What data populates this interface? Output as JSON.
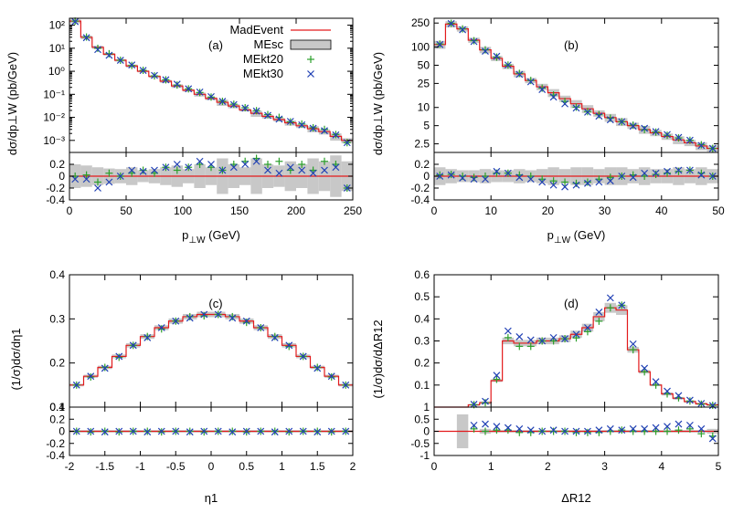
{
  "legend": {
    "entries": [
      {
        "name": "MadEvent",
        "color": "#e31a1c",
        "style": "line"
      },
      {
        "name": "MEsc",
        "color": "#c8c8c8",
        "style": "band"
      },
      {
        "name": "MEkt20",
        "color": "#2ca02c",
        "style": "plus"
      },
      {
        "name": "MEkt30",
        "color": "#1f3fb4",
        "style": "cross"
      }
    ]
  },
  "chart_data": [
    {
      "id": "a",
      "type": "line",
      "panel_label": "(a)",
      "xlabel": "p⊥W (GeV)",
      "ylabel": "dσ/dp⊥W (pb/GeV)",
      "xlim": [
        0,
        250
      ],
      "ylim": [
        0.0003,
        200
      ],
      "yscale": "log",
      "xticks": [
        "0",
        "50",
        "100",
        "150",
        "200",
        "250"
      ],
      "yticks": [
        "10⁻³",
        "10⁻²",
        "10⁻¹",
        "10⁰",
        "10¹",
        "10²"
      ],
      "ratio_ylim": [
        -0.4,
        0.4
      ],
      "ratio_yticks": [
        "-0.4",
        "-0.2",
        "0",
        "0.2",
        "0.4"
      ],
      "bin_width": 10,
      "madevent": [
        150,
        30,
        11,
        5.5,
        3,
        1.7,
        1.0,
        0.6,
        0.37,
        0.23,
        0.15,
        0.1,
        0.066,
        0.045,
        0.031,
        0.021,
        0.015,
        0.011,
        0.008,
        0.0058,
        0.0043,
        0.0032,
        0.0024,
        0.0015,
        0.001
      ],
      "mesc_band": [
        0.2,
        0.18,
        0.15,
        0.13,
        0.12,
        0.15,
        0.1,
        0.12,
        0.15,
        0.18,
        0.12,
        0.2,
        0.15,
        0.3,
        0.2,
        0.15,
        0.3,
        0.2,
        0.18,
        0.25,
        0.2,
        0.3,
        0.25,
        0.35,
        0.25
      ],
      "mekt20": [
        0.0,
        0.02,
        -0.1,
        0.05,
        0.0,
        0.05,
        0.1,
        0.05,
        0.15,
        0.1,
        0.15,
        0.2,
        0.15,
        0.1,
        0.2,
        0.25,
        0.3,
        0.2,
        0.25,
        0.1,
        0.2,
        0.1,
        0.25,
        0.2,
        -0.2
      ],
      "mekt30": [
        -0.05,
        -0.05,
        -0.2,
        -0.1,
        0.0,
        0.1,
        0.08,
        0.1,
        0.15,
        0.2,
        0.15,
        0.25,
        0.2,
        0.1,
        0.15,
        0.2,
        0.25,
        0.1,
        0.05,
        0.15,
        0.1,
        0.05,
        0.1,
        0.15,
        -0.2
      ]
    },
    {
      "id": "b",
      "type": "line",
      "panel_label": "(b)",
      "xlabel": "p⊥W (GeV)",
      "ylabel": "dσ/dp⊥W (pb/GeV)",
      "xlim": [
        0,
        50
      ],
      "ylim": [
        1.8,
        300
      ],
      "yscale": "log",
      "xticks": [
        "0",
        "10",
        "20",
        "30",
        "40",
        "50"
      ],
      "yticks": [
        "2.5",
        "5",
        "10",
        "25",
        "50",
        "100",
        "250"
      ],
      "ytick_values": [
        2.5,
        5,
        10,
        25,
        50,
        100,
        250
      ],
      "ratio_ylim": [
        -0.4,
        0.4
      ],
      "ratio_yticks": [
        "-0.4",
        "-0.2",
        "0",
        "0.2",
        "0.4"
      ],
      "bin_width": 2,
      "madevent": [
        110,
        240,
        200,
        130,
        90,
        65,
        48,
        36,
        28,
        22,
        17.5,
        14,
        11.5,
        9.5,
        8,
        6.8,
        5.8,
        5.0,
        4.3,
        3.8,
        3.3,
        2.9,
        2.6,
        2.3,
        2.1
      ],
      "mesc_band": [
        0.15,
        0.12,
        0.1,
        0.1,
        0.12,
        0.1,
        0.1,
        0.12,
        0.1,
        0.12,
        0.15,
        0.12,
        0.15,
        0.15,
        0.12,
        0.15,
        0.15,
        0.12,
        0.15,
        0.12,
        0.12,
        0.15,
        0.12,
        0.15,
        0.12
      ],
      "mekt20": [
        0.02,
        0.03,
        0.0,
        -0.02,
        0.0,
        0.05,
        0.05,
        0.02,
        0.0,
        -0.05,
        -0.08,
        -0.1,
        -0.12,
        -0.1,
        -0.05,
        -0.02,
        0.0,
        0.02,
        0.0,
        0.03,
        0.05,
        0.08,
        0.1,
        0.05,
        0.0
      ],
      "mekt30": [
        0.0,
        0.02,
        -0.03,
        -0.05,
        -0.05,
        0.08,
        0.05,
        -0.02,
        -0.05,
        -0.1,
        -0.15,
        -0.18,
        -0.15,
        -0.12,
        -0.1,
        -0.08,
        0.0,
        -0.02,
        0.05,
        0.05,
        0.08,
        0.1,
        0.1,
        0.02,
        0.0
      ]
    },
    {
      "id": "c",
      "type": "line",
      "panel_label": "(c)",
      "xlabel": "η1",
      "ylabel": "(1/σ)dσ/dη1",
      "xlim": [
        -2,
        2
      ],
      "ylim": [
        0.1,
        0.4
      ],
      "yscale": "linear",
      "xticks": [
        "-2",
        "-1.5",
        "-1",
        "-0.5",
        "0",
        "0.5",
        "1",
        "1.5",
        "2"
      ],
      "yticks": [
        "0.1",
        "0.2",
        "0.3",
        "0.4"
      ],
      "ytick_top_label": "0.4",
      "ratio_ylim": [
        -0.4,
        0.4
      ],
      "ratio_yticks": [
        "-0.4",
        "-0.2",
        "0",
        "0.2",
        "0.4"
      ],
      "bin_width": 0.2,
      "madevent": [
        0.15,
        0.17,
        0.19,
        0.215,
        0.24,
        0.26,
        0.28,
        0.295,
        0.305,
        0.31,
        0.31,
        0.305,
        0.295,
        0.28,
        0.26,
        0.24,
        0.215,
        0.19,
        0.17,
        0.15
      ],
      "mesc_band": [
        0.02,
        0.02,
        0.02,
        0.02,
        0.02,
        0.02,
        0.02,
        0.02,
        0.02,
        0.02,
        0.02,
        0.02,
        0.02,
        0.02,
        0.02,
        0.02,
        0.02,
        0.02,
        0.02,
        0.02
      ],
      "mekt20": [
        0.0,
        -0.01,
        0.0,
        -0.01,
        0.0,
        0.0,
        -0.01,
        0.0,
        0.0,
        -0.01,
        0.0,
        0.0,
        -0.01,
        0.0,
        0.0,
        -0.01,
        0.0,
        0.0,
        -0.01,
        0.0
      ],
      "mekt30": [
        0.0,
        0.0,
        -0.01,
        0.0,
        0.0,
        -0.01,
        0.0,
        0.0,
        -0.01,
        0.0,
        0.0,
        -0.01,
        0.0,
        0.0,
        -0.01,
        0.0,
        0.0,
        -0.01,
        0.0,
        0.0
      ]
    },
    {
      "id": "d",
      "type": "line",
      "panel_label": "(d)",
      "xlabel": "ΔR12",
      "ylabel": "(1/σ)dσ/dΔR12",
      "xlim": [
        0,
        5
      ],
      "ylim": [
        0,
        0.6
      ],
      "yscale": "linear",
      "xticks": [
        "0",
        "1",
        "2",
        "3",
        "4",
        "5"
      ],
      "yticks": [
        "0.1",
        "0.2",
        "0.3",
        "0.4",
        "0.5",
        "0.6"
      ],
      "ytick_bottom_label": "1",
      "ratio_ylim": [
        -1,
        1
      ],
      "ratio_yticks": [
        "-1",
        "-0.5",
        "0",
        "0.5",
        "1"
      ],
      "bin_width": 0.2,
      "madevent": [
        0,
        0,
        0,
        0.01,
        0.02,
        0.12,
        0.3,
        0.29,
        0.29,
        0.3,
        0.3,
        0.31,
        0.33,
        0.36,
        0.41,
        0.45,
        0.44,
        0.26,
        0.16,
        0.1,
        0.06,
        0.04,
        0.025,
        0.015,
        0.01
      ],
      "mesc_band": [
        0,
        0,
        0.7,
        0,
        0.1,
        0.05,
        0.05,
        0.05,
        0.05,
        0.05,
        0.05,
        0.05,
        0.05,
        0.05,
        0.05,
        0.05,
        0.05,
        0.05,
        0.05,
        0.05,
        0.05,
        0.05,
        0.05,
        0.05,
        0.1
      ],
      "mekt20": [
        null,
        null,
        null,
        0.1,
        0.0,
        0.05,
        0.05,
        -0.05,
        -0.05,
        0.0,
        0.0,
        0.0,
        -0.05,
        -0.05,
        -0.05,
        0.0,
        0.05,
        0.0,
        0.0,
        0.0,
        0.0,
        0.05,
        0.1,
        -0.1,
        -0.2
      ],
      "mekt30": [
        null,
        null,
        null,
        0.25,
        0.3,
        0.2,
        0.15,
        0.1,
        0.05,
        0.0,
        0.05,
        0.0,
        0.0,
        0.0,
        0.05,
        0.1,
        0.05,
        0.1,
        0.1,
        0.15,
        0.2,
        0.3,
        0.25,
        0.1,
        -0.3
      ]
    }
  ]
}
